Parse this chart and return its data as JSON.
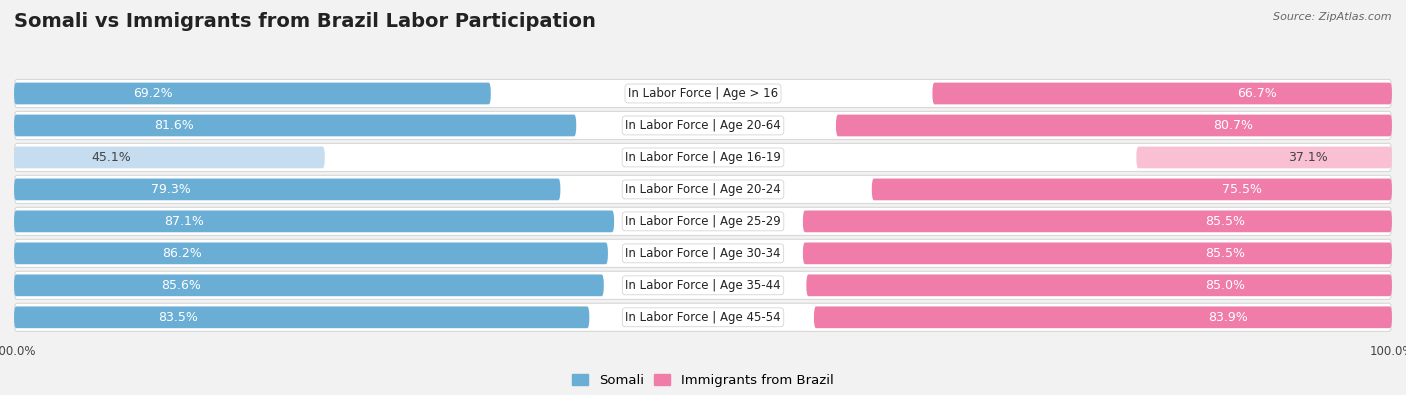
{
  "title": "Somali vs Immigrants from Brazil Labor Participation",
  "source": "Source: ZipAtlas.com",
  "categories": [
    "In Labor Force | Age > 16",
    "In Labor Force | Age 20-64",
    "In Labor Force | Age 16-19",
    "In Labor Force | Age 20-24",
    "In Labor Force | Age 25-29",
    "In Labor Force | Age 30-34",
    "In Labor Force | Age 35-44",
    "In Labor Force | Age 45-54"
  ],
  "somali_values": [
    69.2,
    81.6,
    45.1,
    79.3,
    87.1,
    86.2,
    85.6,
    83.5
  ],
  "brazil_values": [
    66.7,
    80.7,
    37.1,
    75.5,
    85.5,
    85.5,
    85.0,
    83.9
  ],
  "somali_color": "#6aaed6",
  "somali_color_light": "#c6dcef",
  "brazil_color": "#f07caa",
  "brazil_color_light": "#f9c0d4",
  "bar_height": 0.68,
  "background_color": "#f2f2f2",
  "row_bg_color": "#ffffff",
  "row_border_color": "#d8d8d8",
  "label_fontsize": 9,
  "title_fontsize": 14,
  "legend_fontsize": 9.5,
  "axis_label_fontsize": 8.5,
  "legend_label_somali": "Somali",
  "legend_label_brazil": "Immigrants from Brazil"
}
